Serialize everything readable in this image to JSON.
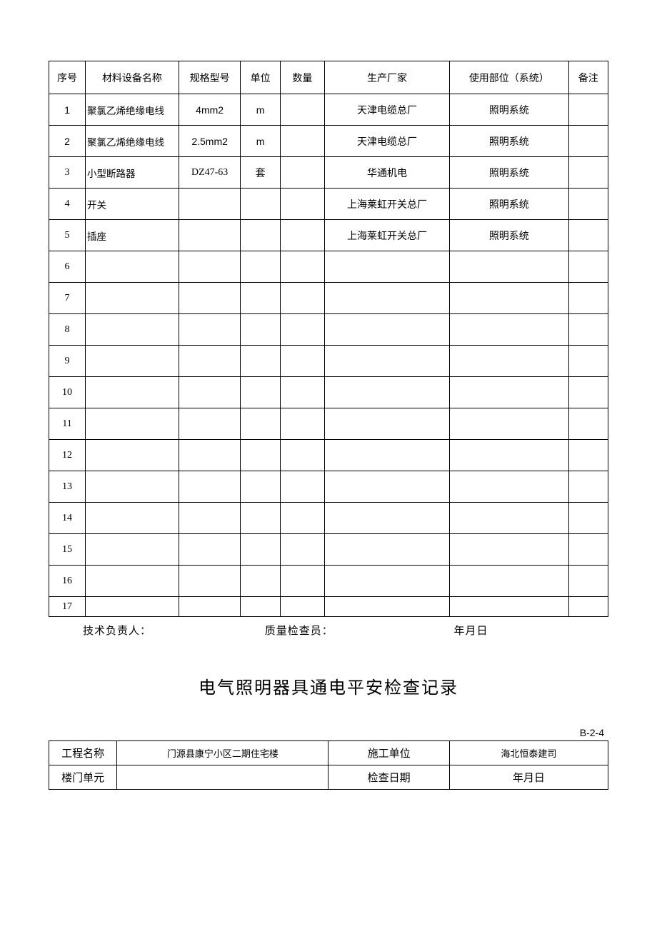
{
  "mainTable": {
    "headers": {
      "seq": "序号",
      "name": "材料设备名称",
      "spec": "规格型号",
      "unit": "单位",
      "qty": "数量",
      "maker": "生产厂家",
      "usage": "使用部位（系统）",
      "remark": "备注"
    },
    "rows": [
      {
        "seq": "1",
        "name": "聚氯乙烯绝缘电线",
        "spec": "4mm2",
        "unit": "m",
        "qty": "",
        "maker": "天津电缆总厂",
        "usage": "照明系统",
        "remark": "",
        "seqClass": "sans",
        "specClass": "sans",
        "unitClass": "sans"
      },
      {
        "seq": "2",
        "name": "聚氯乙烯绝缘电线",
        "spec": "2.5mm2",
        "unit": "m",
        "qty": "",
        "maker": "天津电缆总厂",
        "usage": "照明系统",
        "remark": "",
        "seqClass": "sans",
        "specClass": "sans",
        "unitClass": "sans"
      },
      {
        "seq": "3",
        "name": "小型断路器",
        "spec": "DZ47-63",
        "unit": "套",
        "qty": "",
        "maker": "华通机电",
        "usage": "照明系统",
        "remark": ""
      },
      {
        "seq": "4",
        "name": "开关",
        "spec": "",
        "unit": "",
        "qty": "",
        "maker": "上海莱虹开关总厂",
        "usage": "照明系统",
        "remark": ""
      },
      {
        "seq": "5",
        "name": "插座",
        "spec": "",
        "unit": "",
        "qty": "",
        "maker": "上海莱虹开关总厂",
        "usage": "照明系统",
        "remark": ""
      },
      {
        "seq": "6",
        "name": "",
        "spec": "",
        "unit": "",
        "qty": "",
        "maker": "",
        "usage": "",
        "remark": ""
      },
      {
        "seq": "7",
        "name": "",
        "spec": "",
        "unit": "",
        "qty": "",
        "maker": "",
        "usage": "",
        "remark": ""
      },
      {
        "seq": "8",
        "name": "",
        "spec": "",
        "unit": "",
        "qty": "",
        "maker": "",
        "usage": "",
        "remark": ""
      },
      {
        "seq": "9",
        "name": "",
        "spec": "",
        "unit": "",
        "qty": "",
        "maker": "",
        "usage": "",
        "remark": ""
      },
      {
        "seq": "10",
        "name": "",
        "spec": "",
        "unit": "",
        "qty": "",
        "maker": "",
        "usage": "",
        "remark": ""
      },
      {
        "seq": "11",
        "name": "",
        "spec": "",
        "unit": "",
        "qty": "",
        "maker": "",
        "usage": "",
        "remark": ""
      },
      {
        "seq": "12",
        "name": "",
        "spec": "",
        "unit": "",
        "qty": "",
        "maker": "",
        "usage": "",
        "remark": ""
      },
      {
        "seq": "13",
        "name": "",
        "spec": "",
        "unit": "",
        "qty": "",
        "maker": "",
        "usage": "",
        "remark": ""
      },
      {
        "seq": "14",
        "name": "",
        "spec": "",
        "unit": "",
        "qty": "",
        "maker": "",
        "usage": "",
        "remark": ""
      },
      {
        "seq": "15",
        "name": "",
        "spec": "",
        "unit": "",
        "qty": "",
        "maker": "",
        "usage": "",
        "remark": ""
      },
      {
        "seq": "16",
        "name": "",
        "spec": "",
        "unit": "",
        "qty": "",
        "maker": "",
        "usage": "",
        "remark": ""
      },
      {
        "seq": "17",
        "name": "",
        "spec": "",
        "unit": "",
        "qty": "",
        "maker": "",
        "usage": "",
        "remark": "",
        "short": true
      }
    ]
  },
  "signLine": {
    "tech": "技术负责人：",
    "qc": "质量检查员：",
    "date": "年月日"
  },
  "sectionTitle": "电气照明器具通电平安检查记录",
  "formCode": "B-2-4",
  "infoTable": {
    "r1c1": "工程名称",
    "r1c2": "门源县康宁小区二期住宅楼",
    "r1c3": "施工单位",
    "r1c4": "海北恒泰建司",
    "r2c1": "楼门单元",
    "r2c2": "",
    "r2c3": "检查日期",
    "r2c4": "年月日"
  }
}
